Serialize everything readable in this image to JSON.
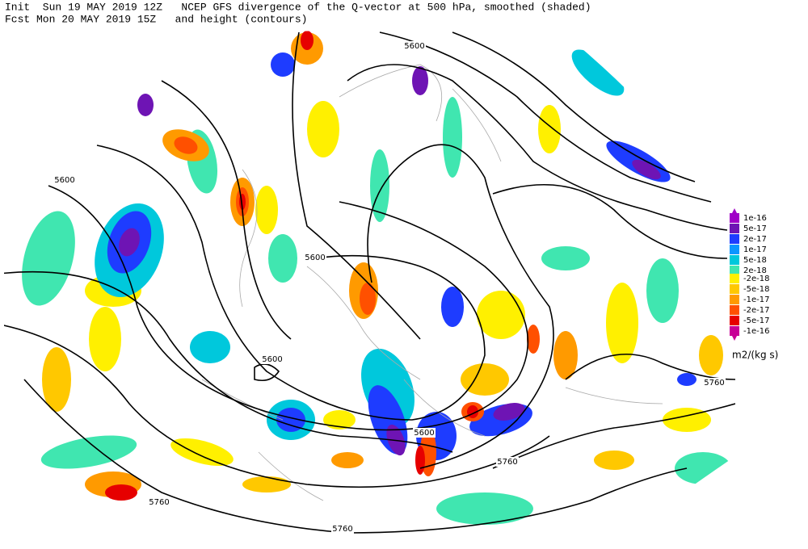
{
  "header": {
    "line1": "Init  Sun 19 MAY 2019 12Z   NCEP GFS divergence of the Q-vector at 500 hPa, smoothed (shaded)",
    "line2": "Fcst Mon 20 MAY 2019 15Z   and height (contours)"
  },
  "contour_labels": [
    "5600",
    "5600",
    "5600",
    "5600",
    "5600",
    "5760",
    "5760",
    "5760",
    "5760"
  ],
  "legend": {
    "unit": "m2/(kg s)",
    "items": [
      {
        "label": "1e-16",
        "color": "#a000c8"
      },
      {
        "label": "5e-17",
        "color": "#6e14b4"
      },
      {
        "label": "2e-17",
        "color": "#1e3cff"
      },
      {
        "label": "1e-17",
        "color": "#0a96ff"
      },
      {
        "label": "5e-18",
        "color": "#00c8dc"
      },
      {
        "label": "2e-18",
        "color": "#40e6b0"
      },
      {
        "label": "-2e-18",
        "color": "#fff000"
      },
      {
        "label": "-5e-18",
        "color": "#ffc800"
      },
      {
        "label": "-1e-17",
        "color": "#ff9a00"
      },
      {
        "label": "-2e-17",
        "color": "#ff5000"
      },
      {
        "label": "-5e-17",
        "color": "#e60000"
      },
      {
        "label": "-1e-16",
        "color": "#c80096"
      }
    ]
  }
}
